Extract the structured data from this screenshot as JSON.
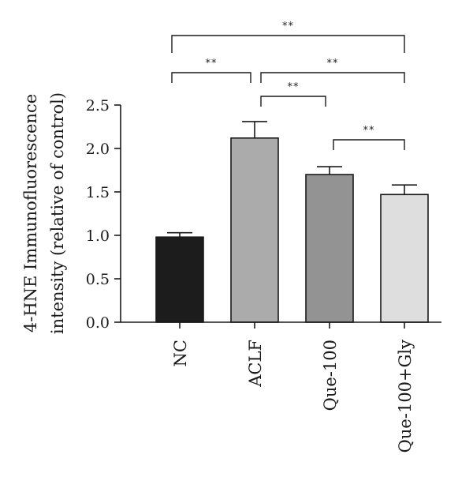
{
  "chart_data": {
    "type": "bar",
    "categories": [
      "NC",
      "ACLF",
      "Que-100",
      "Que-100+Gly"
    ],
    "values": [
      0.98,
      2.12,
      1.7,
      1.47
    ],
    "errors": [
      0.05,
      0.19,
      0.09,
      0.11
    ],
    "colors": [
      "#1c1c1c",
      "#ababab",
      "#939393",
      "#dedede"
    ],
    "ylabel": [
      "4-HNE Immunofluorescence",
      "intensity (relative of control)"
    ],
    "xlabel": "",
    "ylim": [
      0,
      2.5
    ],
    "yticks": [
      "0.0",
      "0.5",
      "1.0",
      "1.5",
      "2.0",
      "2.5"
    ],
    "grid": false,
    "significance": [
      {
        "from": 0,
        "to": 1,
        "label": "**"
      },
      {
        "from": 1,
        "to": 2,
        "label": "**"
      },
      {
        "from": 1,
        "to": 3,
        "label": "**"
      },
      {
        "from": 2,
        "to": 3,
        "label": "**"
      },
      {
        "from": 0,
        "to": 3,
        "label": "**"
      }
    ]
  }
}
